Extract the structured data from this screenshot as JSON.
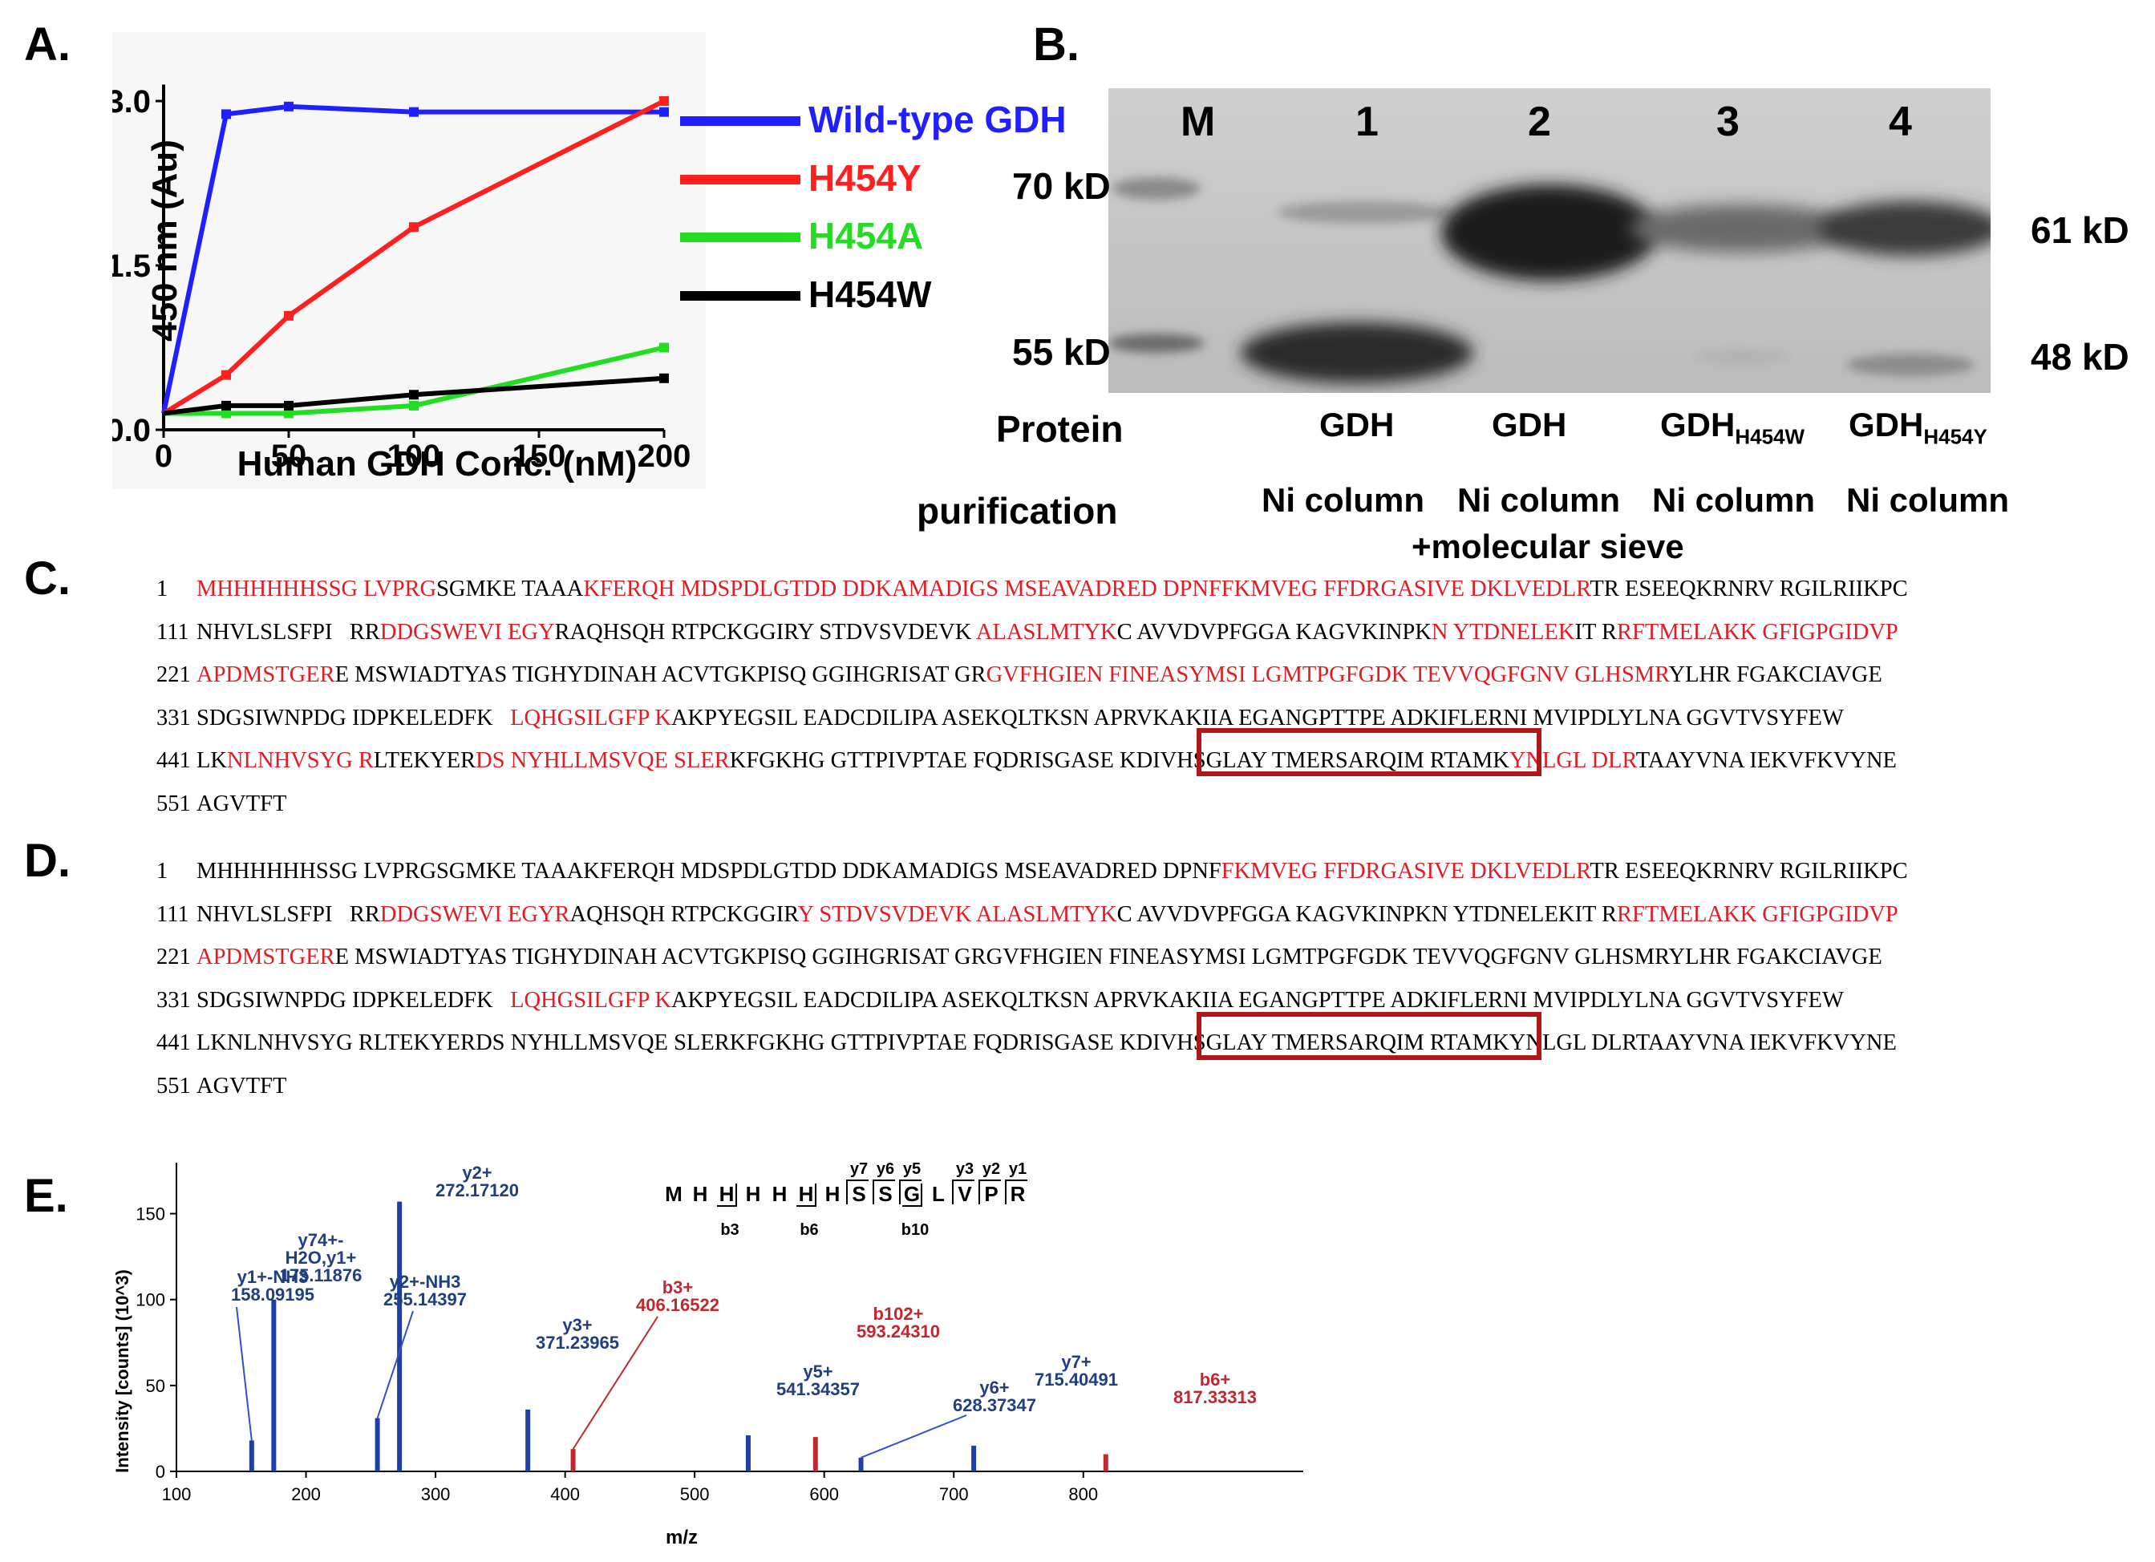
{
  "panels": {
    "a": "A.",
    "b": "B.",
    "c": "C.",
    "d": "D.",
    "e": "E."
  },
  "panelA": {
    "chart_data": {
      "type": "line",
      "xlabel": "Human GDH Conc. (nM)",
      "ylabel": "450 nm (Au)",
      "xlim": [
        0,
        200
      ],
      "ylim": [
        0,
        3.0
      ],
      "xticks": [
        "0",
        "50",
        "100",
        "150",
        "200"
      ],
      "yticks": [
        "0.0",
        "1.5",
        "3.0"
      ],
      "series": [
        {
          "name": "Wild-type GDH",
          "color": "#1f1fff",
          "x": [
            0,
            25,
            50,
            100,
            200
          ],
          "y": [
            0.15,
            2.88,
            2.95,
            2.9,
            2.9
          ]
        },
        {
          "name": "H454Y",
          "color": "#ff1f1f",
          "x": [
            0,
            25,
            50,
            100,
            200
          ],
          "y": [
            0.15,
            0.5,
            1.04,
            1.85,
            3.0
          ]
        },
        {
          "name": "H454A",
          "color": "#22dd22",
          "x": [
            0,
            25,
            50,
            100,
            200
          ],
          "y": [
            0.15,
            0.15,
            0.15,
            0.22,
            0.75
          ]
        },
        {
          "name": "H454W",
          "color": "#000000",
          "x": [
            0,
            25,
            50,
            100,
            200
          ],
          "y": [
            0.15,
            0.22,
            0.22,
            0.32,
            0.47
          ]
        }
      ]
    }
  },
  "panelB": {
    "lanes": [
      "M",
      "1",
      "2",
      "3",
      "4"
    ],
    "markers_left": [
      "70 kD",
      "55 kD"
    ],
    "markers_right": [
      "61 kD",
      "48 kD"
    ],
    "row_protein_label": "Protein",
    "row_purification_label": "purification",
    "proteins": [
      "GDH",
      "GDH",
      "GDH",
      "GDH"
    ],
    "protein_subscripts": [
      "",
      "",
      "H454W",
      "H454Y"
    ],
    "methods": [
      "Ni column",
      "Ni column",
      "Ni column",
      "Ni column"
    ],
    "method_extra": "+molecular sieve"
  },
  "panelC": {
    "lines": [
      {
        "num": "1",
        "segments": [
          [
            "MHHHHHHSSG LVPRG",
            1
          ],
          [
            "SGMKE TAAA",
            0
          ],
          [
            "KFERQH MDSPDLGTDD DDKAMADIGS MSEAVADRED DPNFFKMVEG FFDRGASIVE DKLVEDLR",
            1
          ],
          [
            "TR ESEEQKRNRV RGILRIIKPC",
            0
          ]
        ]
      },
      {
        "num": "111",
        "segments": [
          [
            "NHVLSLSFPI   RR",
            0
          ],
          [
            "DDGSWEVI EGY",
            1
          ],
          [
            "RAQHSQH RTPCKGGIRY STDVSVDEVK ",
            0
          ],
          [
            "ALASLMTYK",
            1
          ],
          [
            "C AVVDVPFGGA KAGVKINPK",
            0
          ],
          [
            "N YTDNELEK",
            1
          ],
          [
            "IT R",
            0
          ],
          [
            "RFTMELAKK GFIGPGIDVP",
            1
          ]
        ]
      },
      {
        "num": "221",
        "segments": [
          [
            "APDMSTGER",
            1
          ],
          [
            "E MSWIADTYAS TIGHYDINAH ACVTGKPISQ GGIHGRISAT GR",
            0
          ],
          [
            "GVFHGIEN FINEASYMSI LGMTPGFGDK TEVVQGFGNV GLHSMR",
            1
          ],
          [
            "YLHR FGAKCIAVGE",
            0
          ]
        ]
      },
      {
        "num": "331",
        "segments": [
          [
            "SDGSIWNPDG IDPKELEDFK   ",
            0
          ],
          [
            "LQHGSILGFP K",
            1
          ],
          [
            "AKPYEGSIL EADCDILIPA ASEKQLTKSN APRVKAKIIA EGANGPTTPE ADKIFLERNI MVIPDLYLNA GGVTVSYFEW",
            0
          ]
        ]
      },
      {
        "num": "441",
        "segments": [
          [
            "LK",
            0
          ],
          [
            "NLNHVSYG R",
            1
          ],
          [
            "LTEKYER",
            0
          ],
          [
            "DS NYHLLMSVQE SLER",
            1
          ],
          [
            "KFGKHG GTTPIVPTAE FQDRISGASE KDIVHSGLAY TMERSARQIM RTAMK",
            0
          ],
          [
            "YNLGL DLR",
            1
          ],
          [
            "TAAYVNA IEKVFKVYNE",
            0
          ]
        ]
      },
      {
        "num": "551",
        "segments": [
          [
            "AGVTFT",
            0
          ]
        ]
      }
    ]
  },
  "panelD": {
    "lines": [
      {
        "num": "1",
        "segments": [
          [
            "MHHHHHHSSG LVPRGSGMKE TAAAKFERQH MDSPDLGTDD DDKAMADIGS MSEAVADRED DPNF",
            0
          ],
          [
            "FKMVEG FFDRGASIVE DKLVEDLR",
            1
          ],
          [
            "TR ESEEQKRNRV RGILRIIKPC",
            0
          ]
        ]
      },
      {
        "num": "111",
        "segments": [
          [
            "NHVLSLSFPI   RR",
            0
          ],
          [
            "DDGSWEVI EGYR",
            1
          ],
          [
            "AQHSQH RTPCKGGIR",
            0
          ],
          [
            "Y STDVSVDEVK ALASLMTYK",
            1
          ],
          [
            "C AVVDVPFGGA KAGVKINPKN YTDNELEKIT R",
            0
          ],
          [
            "RFTMELAKK GFIGPGIDVP",
            1
          ]
        ]
      },
      {
        "num": "221",
        "segments": [
          [
            "APDMSTGER",
            1
          ],
          [
            "E MSWIADTYAS TIGHYDINAH ACVTGKPISQ GGIHGRISAT GRGVFHGIEN FINEASYMSI LGMTPGFGDK TEVVQGFGNV GLHSMRYLHR FGAKCIAVGE",
            0
          ]
        ]
      },
      {
        "num": "331",
        "segments": [
          [
            "SDGSIWNPDG IDPKELEDFK   ",
            0
          ],
          [
            "LQHGSILGFP K",
            1
          ],
          [
            "AKPYEGSIL EADCDILIPA ASEKQLTKSN APRVKAKIIA EGANGPTTPE ADKIFLERNI MVIPDLYLNA GGVTVSYFEW",
            0
          ]
        ]
      },
      {
        "num": "441",
        "segments": [
          [
            "LKNLNHVSYG RLTEKYERDS NYHLLMSVQE SLERKFGKHG GTTPIVPTAE FQDRISGASE KDIVHSGLAY TMERSARQIM RTAMKYNLGL DLRTAAYVNA IEKVFKVYNE",
            0
          ]
        ]
      },
      {
        "num": "551",
        "segments": [
          [
            "AGVTFT",
            0
          ]
        ]
      }
    ]
  },
  "panelE": {
    "chart_data": {
      "type": "bar",
      "xlabel": "m/z",
      "ylabel": "Intensity [counts] (10^3)",
      "xlim": [
        100,
        880
      ],
      "ylim": [
        0,
        175
      ],
      "xticks": [
        "100",
        "200",
        "300",
        "400",
        "500",
        "600",
        "700",
        "800"
      ],
      "yticks": [
        "0",
        "50",
        "100",
        "150"
      ],
      "peaks": [
        {
          "mz": 158.09195,
          "intensity": 18,
          "color": "#1f3fa8"
        },
        {
          "mz": 175.11876,
          "intensity": 100,
          "color": "#1f3fa8"
        },
        {
          "mz": 255.14397,
          "intensity": 31,
          "color": "#1f3fa8"
        },
        {
          "mz": 272.1712,
          "intensity": 157,
          "color": "#1f3fa8"
        },
        {
          "mz": 371.23965,
          "intensity": 36,
          "color": "#1f3fa8"
        },
        {
          "mz": 406.16522,
          "intensity": 13,
          "color": "#c0282d"
        },
        {
          "mz": 541.34357,
          "intensity": 21,
          "color": "#1f3fa8"
        },
        {
          "mz": 593.2431,
          "intensity": 20,
          "color": "#c0282d"
        },
        {
          "mz": 628.37347,
          "intensity": 8,
          "color": "#1f3fa8"
        },
        {
          "mz": 715.40491,
          "intensity": 15,
          "color": "#1f3fa8"
        },
        {
          "mz": 817.33313,
          "intensity": 10,
          "color": "#c0282d"
        }
      ]
    },
    "peptide": [
      "M",
      "H",
      "H",
      "H",
      "H",
      "H",
      "H",
      "S",
      "S",
      "G",
      "L",
      "V",
      "P",
      "R"
    ],
    "y_ions": [
      "y7",
      "y6",
      "y5",
      "y3",
      "y2",
      "y1"
    ],
    "b_ions": [
      "b3",
      "b6",
      "b10"
    ],
    "annotations": {
      "a1": {
        "l1": "y1+-NH3",
        "l2": "158.09195"
      },
      "a2": {
        "l0": "y74+-",
        "l1": "H2O,y1+",
        "l2": "175.11876"
      },
      "a3": {
        "l1": "y2+-NH3",
        "l2": "255.14397"
      },
      "a4": {
        "l1": "y2+",
        "l2": "272.17120"
      },
      "a5": {
        "l1": "y3+",
        "l2": "371.23965"
      },
      "a6": {
        "l1": "b3+",
        "l2": "406.16522"
      },
      "a7": {
        "l1": "y5+",
        "l2": "541.34357"
      },
      "a8": {
        "l1": "b102+",
        "l2": "593.24310"
      },
      "a9": {
        "l1": "y6+",
        "l2": "628.37347"
      },
      "a10": {
        "l1": "y7+",
        "l2": "715.40491"
      },
      "a11": {
        "l1": "b6+",
        "l2": "817.33313"
      }
    }
  }
}
